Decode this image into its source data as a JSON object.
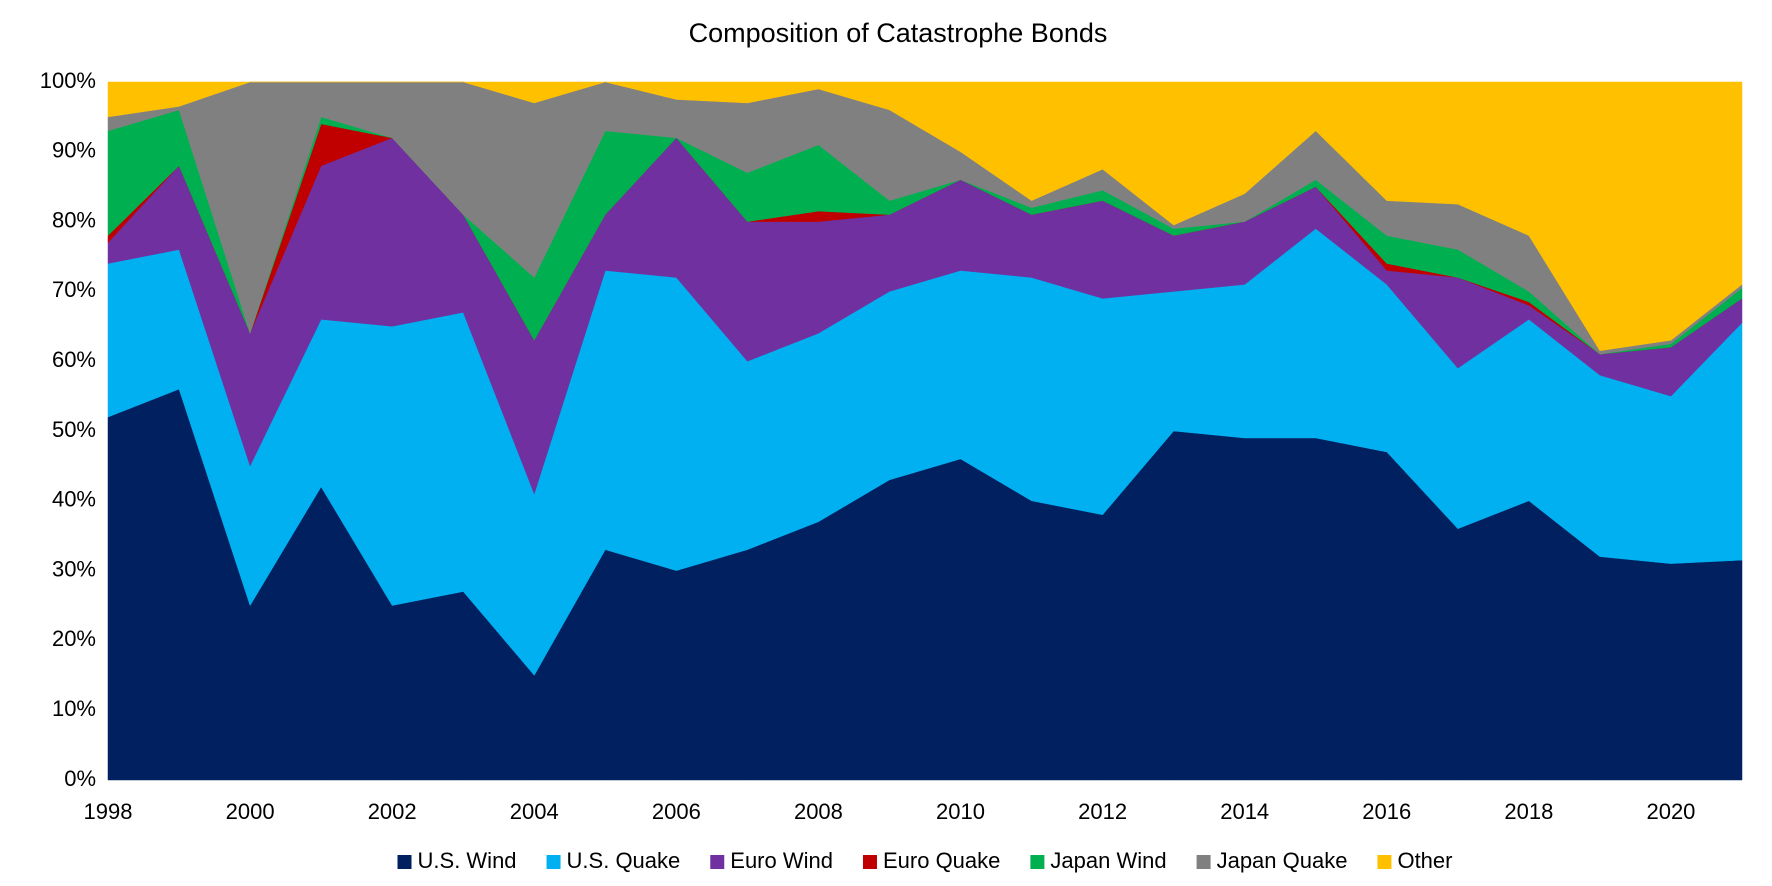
{
  "chart_data": {
    "type": "stacked_area",
    "title": "Composition of Catastrophe Bonds",
    "x": [
      1998,
      1999,
      2000,
      2001,
      2002,
      2003,
      2004,
      2005,
      2006,
      2007,
      2008,
      2009,
      2010,
      2011,
      2012,
      2013,
      2014,
      2015,
      2016,
      2017,
      2018,
      2019,
      2020,
      2021
    ],
    "xlim": [
      1998,
      2021
    ],
    "xticks": [
      1998,
      2000,
      2002,
      2004,
      2006,
      2008,
      2010,
      2012,
      2014,
      2016,
      2018,
      2020
    ],
    "ylim": [
      0,
      100
    ],
    "yticks": [
      {
        "value": 0,
        "label": "0%"
      },
      {
        "value": 10,
        "label": "10%"
      },
      {
        "value": 20,
        "label": "20%"
      },
      {
        "value": 30,
        "label": "30%"
      },
      {
        "value": 40,
        "label": "40%"
      },
      {
        "value": 50,
        "label": "50%"
      },
      {
        "value": 60,
        "label": "60%"
      },
      {
        "value": 70,
        "label": "70%"
      },
      {
        "value": 80,
        "label": "80%"
      },
      {
        "value": 90,
        "label": "90%"
      },
      {
        "value": 100,
        "label": "100%"
      }
    ],
    "legend": "bottom",
    "series": [
      {
        "name": "U.S. Wind",
        "color": "#002060",
        "values": [
          52,
          56,
          25,
          42,
          25,
          27,
          15,
          33,
          30,
          33,
          37,
          43,
          46,
          40,
          38,
          50,
          49,
          49,
          47,
          36,
          40,
          32,
          31,
          31.5
        ]
      },
      {
        "name": "U.S. Quake",
        "color": "#00b0f0",
        "values": [
          22,
          20,
          20,
          24,
          40,
          40,
          26,
          40,
          42,
          27,
          27,
          27,
          27,
          32,
          31,
          20,
          22,
          30,
          24,
          23,
          26,
          26,
          24,
          34
        ]
      },
      {
        "name": "Euro Wind",
        "color": "#7030a0",
        "values": [
          3,
          12,
          19,
          22,
          27,
          14,
          22,
          8,
          20,
          20,
          16,
          11,
          13,
          9,
          14,
          8,
          9,
          6,
          2,
          13,
          2,
          3,
          7,
          3.5
        ]
      },
      {
        "name": "Euro Quake",
        "color": "#c00000",
        "values": [
          1,
          0,
          0,
          6,
          0,
          0,
          0,
          0,
          0,
          0,
          1.5,
          0,
          0,
          0,
          0,
          0,
          0,
          0,
          1,
          0,
          0.5,
          0,
          0,
          0
        ]
      },
      {
        "name": "Japan Wind",
        "color": "#00b050",
        "values": [
          15,
          8,
          0,
          1,
          0,
          0,
          9,
          12,
          0,
          7,
          9.5,
          2,
          0,
          1,
          1.5,
          1,
          0,
          1,
          4,
          4,
          1.5,
          0,
          0.5,
          1.5
        ]
      },
      {
        "name": "Japan Quake",
        "color": "#808080",
        "values": [
          2,
          0.5,
          36,
          5,
          8,
          19,
          25,
          7,
          5.5,
          10,
          8,
          13,
          4,
          1,
          3,
          0.5,
          4,
          7,
          5,
          6.5,
          8,
          0.5,
          0.5,
          0.5
        ]
      },
      {
        "name": "Other",
        "color": "#ffc000",
        "values": [
          5,
          3.5,
          0,
          0,
          0,
          0,
          3,
          0,
          2.5,
          3,
          1,
          4,
          10,
          17,
          12.5,
          20.5,
          16,
          7,
          17,
          17.5,
          22,
          38.5,
          37,
          29
        ]
      }
    ]
  }
}
